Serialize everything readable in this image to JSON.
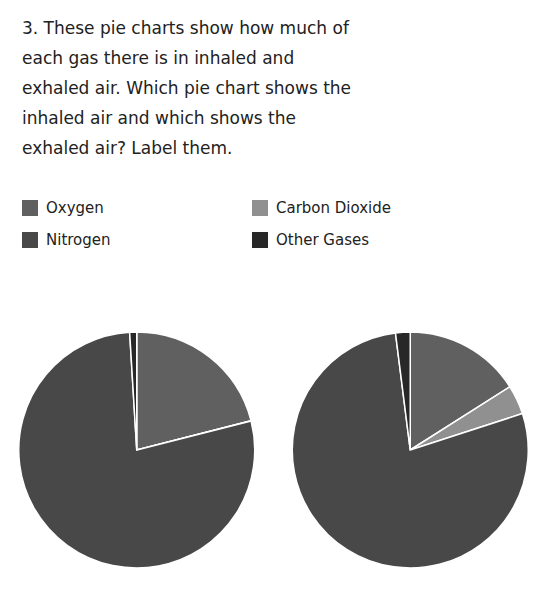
{
  "chart_data": [
    {
      "type": "pie",
      "title": [
        "3. These pie charts show how much of",
        "each gas there is in inhaled and",
        "exhaled air. Which pie chart shows the",
        "inhaled air and which shows the",
        "exhaled air? Label them."
      ],
      "categories": [
        "Oxygen",
        "Carbon Dioxide",
        "Nitrogen",
        "Other Gases"
      ],
      "values": [
        21,
        0.04,
        78,
        0.96
      ],
      "colors": [
        "#606060",
        "#909090",
        "#484848",
        "#282828"
      ],
      "legend": "top"
    },
    {
      "type": "pie",
      "categories": [
        "Oxygen",
        "Carbon Dioxide",
        "Nitrogen",
        "Other Gases"
      ],
      "values": [
        16,
        4,
        78,
        2
      ],
      "colors": [
        "#606060",
        "#909090",
        "#484848",
        "#282828"
      ]
    }
  ]
}
